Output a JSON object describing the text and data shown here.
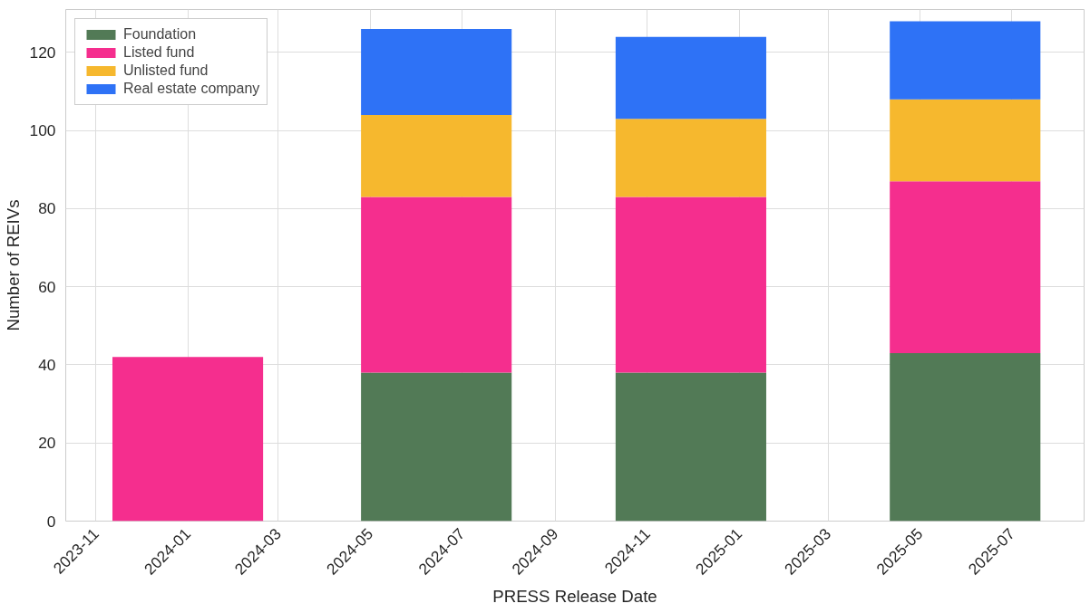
{
  "chart_data": {
    "type": "bar",
    "stacked": true,
    "xlabel": "PRESS Release Date",
    "ylabel": "Number of REIVs",
    "x": [
      "2024-01-01",
      "2024-06-14",
      "2024-11-30",
      "2025-05-31"
    ],
    "series": [
      {
        "name": "Foundation",
        "color": "#527a56",
        "values": [
          null,
          38,
          38,
          43
        ]
      },
      {
        "name": "Listed fund",
        "color": "#f52e8e",
        "values": [
          42,
          45,
          45,
          44
        ]
      },
      {
        "name": "Unlisted fund",
        "color": "#f6b82e",
        "values": [
          null,
          21,
          20,
          21
        ]
      },
      {
        "name": "Real estate company",
        "color": "#2e72f6",
        "values": [
          null,
          22,
          21,
          20
        ]
      }
    ],
    "xlim": [
      "2023-10-12",
      "2025-08-18"
    ],
    "xticks": [
      "2023-11",
      "2024-01",
      "2024-03",
      "2024-05",
      "2024-07",
      "2024-09",
      "2024-11",
      "2025-01",
      "2025-03",
      "2025-05",
      "2025-07"
    ],
    "ylim": [
      0,
      131
    ],
    "yticks": [
      0,
      20,
      40,
      60,
      80,
      100,
      120
    ],
    "grid": true,
    "legend": "top left"
  }
}
